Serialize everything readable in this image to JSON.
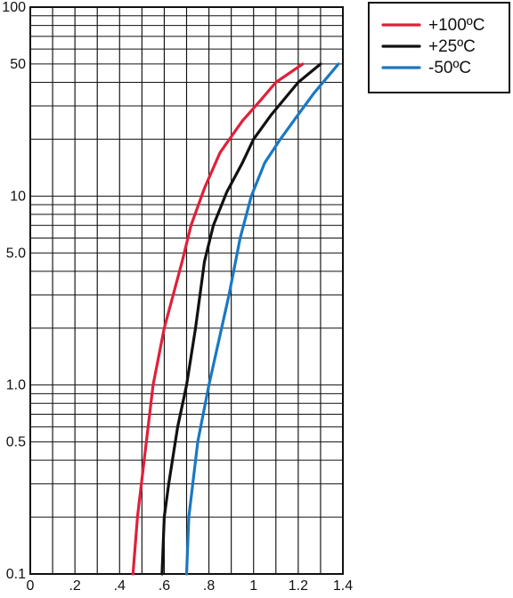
{
  "chart_data": {
    "type": "line",
    "title": "",
    "xlabel": "",
    "ylabel": "",
    "xlim": [
      0,
      1.4
    ],
    "ylim": [
      0.1,
      100
    ],
    "yscale": "log",
    "grid": true,
    "legend_position": "top-right",
    "x_ticks": [
      {
        "value": 0.0,
        "label": "0"
      },
      {
        "value": 0.2,
        "label": ".2"
      },
      {
        "value": 0.4,
        "label": ".4"
      },
      {
        "value": 0.6,
        "label": ".6"
      },
      {
        "value": 0.8,
        "label": ".8"
      },
      {
        "value": 1.0,
        "label": "1"
      },
      {
        "value": 1.2,
        "label": "1.2"
      },
      {
        "value": 1.4,
        "label": "1.4"
      }
    ],
    "y_ticks": [
      {
        "value": 0.1,
        "label": "0.1"
      },
      {
        "value": 0.5,
        "label": "0.5"
      },
      {
        "value": 1.0,
        "label": "1.0"
      },
      {
        "value": 5.0,
        "label": "5.0"
      },
      {
        "value": 10,
        "label": "10"
      },
      {
        "value": 50,
        "label": "50"
      },
      {
        "value": 100,
        "label": "100"
      }
    ],
    "series": [
      {
        "name": "+100ºC",
        "color": "#e0203a",
        "points": [
          [
            0.46,
            0.1
          ],
          [
            0.48,
            0.2
          ],
          [
            0.51,
            0.4
          ],
          [
            0.55,
            1.0
          ],
          [
            0.6,
            2.0
          ],
          [
            0.68,
            4.5
          ],
          [
            0.72,
            7.0
          ],
          [
            0.78,
            11.0
          ],
          [
            0.85,
            17.0
          ],
          [
            0.95,
            25.0
          ],
          [
            1.03,
            32.0
          ],
          [
            1.1,
            40.0
          ],
          [
            1.22,
            50.0
          ]
        ]
      },
      {
        "name": "+25ºC",
        "color": "#111111",
        "points": [
          [
            0.59,
            0.1
          ],
          [
            0.6,
            0.2
          ],
          [
            0.62,
            0.3
          ],
          [
            0.66,
            0.6
          ],
          [
            0.7,
            1.0
          ],
          [
            0.74,
            2.0
          ],
          [
            0.78,
            4.5
          ],
          [
            0.82,
            7.0
          ],
          [
            0.88,
            10.5
          ],
          [
            0.95,
            15.0
          ],
          [
            1.0,
            20.0
          ],
          [
            1.08,
            27.0
          ],
          [
            1.2,
            40.0
          ],
          [
            1.3,
            50.0
          ]
        ]
      },
      {
        "name": "-50ºC",
        "color": "#1a78c2",
        "points": [
          [
            0.7,
            0.1
          ],
          [
            0.71,
            0.2
          ],
          [
            0.75,
            0.5
          ],
          [
            0.8,
            1.0
          ],
          [
            0.89,
            3.0
          ],
          [
            0.94,
            6.0
          ],
          [
            0.99,
            10.0
          ],
          [
            1.05,
            15.0
          ],
          [
            1.12,
            20.0
          ],
          [
            1.2,
            27.0
          ],
          [
            1.27,
            35.0
          ],
          [
            1.38,
            50.0
          ]
        ]
      }
    ]
  }
}
